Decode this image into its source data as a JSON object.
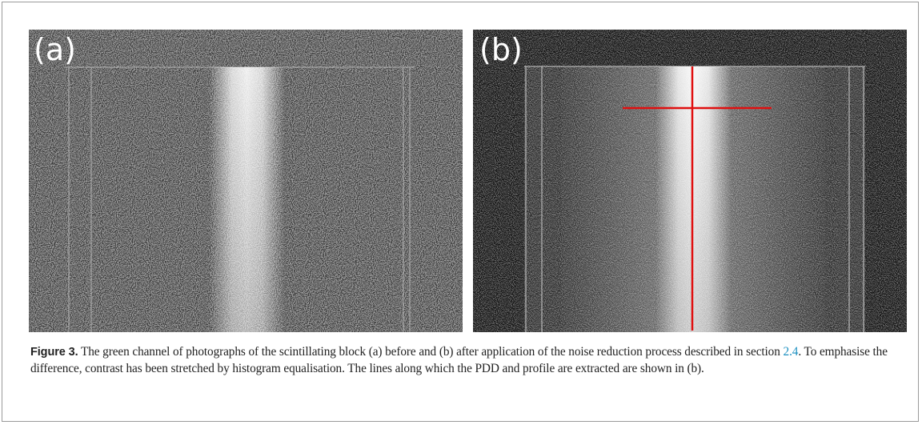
{
  "panels": [
    {
      "label": "(a)"
    },
    {
      "label": "(b)"
    }
  ],
  "caption": {
    "label": "Figure 3.",
    "text_before": " The green channel of photographs of the scintillating block (a) before and (b) after application of the noise reduction process described in section ",
    "link": "2.4",
    "text_after": ". To emphasise the difference, contrast has been stretched by histogram equalisation. The lines along which the PDD and profile are extracted are shown in (b)."
  }
}
